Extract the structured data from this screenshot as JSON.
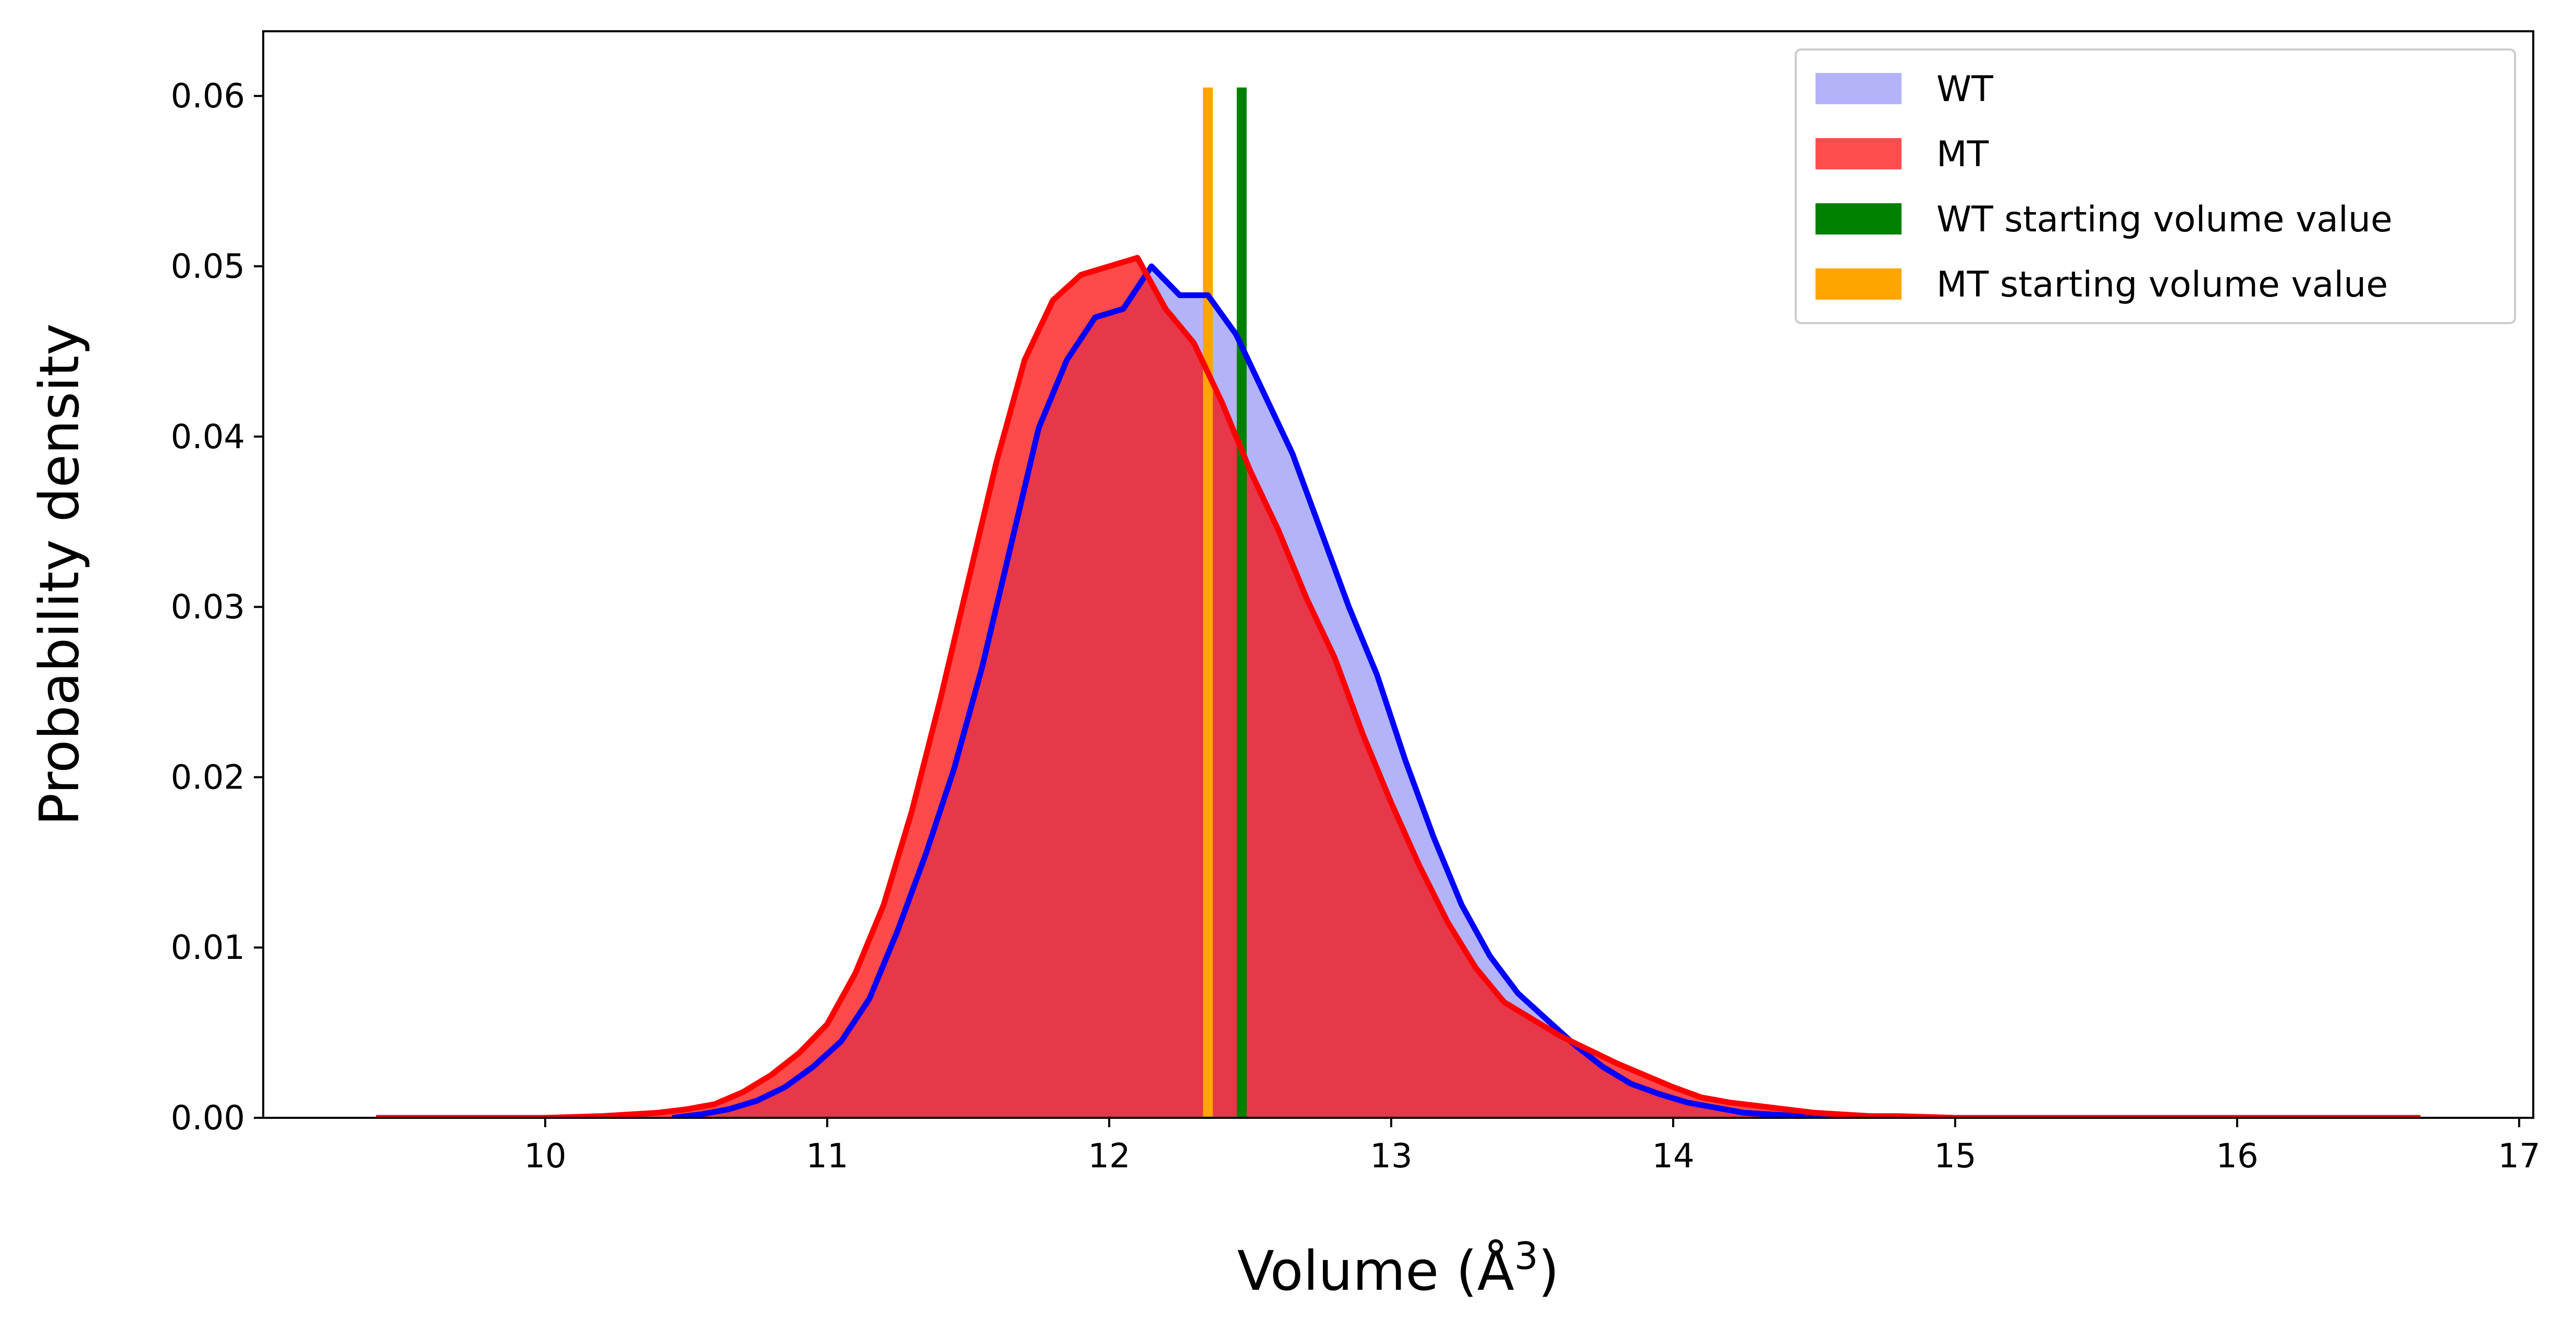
{
  "chart_data": {
    "type": "histogram",
    "xlabel": "Volume (Å",
    "xlabel_sup": "3",
    "xlabel_close": ")",
    "ylabel": "Probability density",
    "xlim": [
      9.0,
      17.05
    ],
    "ylim": [
      0.0,
      0.0638
    ],
    "xticks": [
      10,
      11,
      12,
      13,
      14,
      15,
      16,
      17
    ],
    "yticks": [
      0.0,
      0.01,
      0.02,
      0.03,
      0.04,
      0.05,
      0.06
    ],
    "ytick_labels": [
      "0.00",
      "0.01",
      "0.02",
      "0.03",
      "0.04",
      "0.05",
      "0.06"
    ],
    "grid": false,
    "legend_position": "top-right",
    "series": [
      {
        "name": "WT",
        "kind": "histogram+line",
        "fill_color": "#b3b3fa",
        "line_color": "#0000ff",
        "x": [
          10.45,
          10.55,
          10.65,
          10.75,
          10.85,
          10.95,
          11.05,
          11.15,
          11.25,
          11.35,
          11.45,
          11.55,
          11.65,
          11.75,
          11.85,
          11.95,
          12.05,
          12.15,
          12.25,
          12.35,
          12.45,
          12.55,
          12.65,
          12.75,
          12.85,
          12.95,
          13.05,
          13.15,
          13.25,
          13.35,
          13.45,
          13.55,
          13.65,
          13.75,
          13.85,
          13.95,
          14.05,
          14.15,
          14.25,
          14.35,
          14.45,
          14.55,
          14.65
        ],
        "values": [
          0.0,
          0.0002,
          0.0005,
          0.001,
          0.0018,
          0.003,
          0.0045,
          0.007,
          0.011,
          0.0155,
          0.0205,
          0.0265,
          0.0335,
          0.0405,
          0.0445,
          0.047,
          0.0475,
          0.05,
          0.0483,
          0.0483,
          0.046,
          0.0425,
          0.039,
          0.0345,
          0.03,
          0.026,
          0.021,
          0.0165,
          0.0125,
          0.0095,
          0.0073,
          0.0058,
          0.0043,
          0.003,
          0.002,
          0.0014,
          0.0009,
          0.0006,
          0.0003,
          0.0002,
          0.0001,
          0.0,
          0.0
        ]
      },
      {
        "name": "MT",
        "kind": "histogram+line",
        "fill_color": "#fe4a4a",
        "overlap_color": "#e6374b",
        "line_color": "#ff0000",
        "x": [
          9.4,
          9.6,
          9.8,
          10.0,
          10.2,
          10.3,
          10.4,
          10.5,
          10.6,
          10.7,
          10.8,
          10.9,
          11.0,
          11.1,
          11.2,
          11.3,
          11.4,
          11.5,
          11.6,
          11.7,
          11.8,
          11.9,
          12.0,
          12.1,
          12.2,
          12.3,
          12.4,
          12.5,
          12.6,
          12.7,
          12.8,
          12.9,
          13.0,
          13.1,
          13.2,
          13.3,
          13.4,
          13.5,
          13.6,
          13.7,
          13.8,
          13.9,
          14.0,
          14.1,
          14.2,
          14.3,
          14.4,
          14.5,
          14.6,
          14.7,
          14.8,
          15.0,
          15.2,
          15.5,
          16.0,
          16.3,
          16.65
        ],
        "values": [
          0.0,
          0.0,
          0.0,
          0.0,
          0.0001,
          0.0002,
          0.0003,
          0.0005,
          0.0008,
          0.0015,
          0.0025,
          0.0038,
          0.0055,
          0.0085,
          0.0125,
          0.018,
          0.0245,
          0.0315,
          0.0385,
          0.0445,
          0.048,
          0.0495,
          0.05,
          0.0505,
          0.0475,
          0.0455,
          0.042,
          0.038,
          0.0345,
          0.0305,
          0.027,
          0.0225,
          0.0185,
          0.0148,
          0.0115,
          0.0088,
          0.0068,
          0.0058,
          0.0048,
          0.004,
          0.0032,
          0.0025,
          0.0018,
          0.0012,
          0.0009,
          0.0007,
          0.0005,
          0.0003,
          0.0002,
          0.0001,
          0.0001,
          0.0,
          0.0,
          0.0,
          0.0,
          0.0,
          0.0
        ]
      }
    ],
    "vertical_lines": [
      {
        "name": "WT starting volume value",
        "x": 12.47,
        "ymax": 0.0605,
        "color": "#008000"
      },
      {
        "name": "MT starting volume value",
        "x": 12.35,
        "ymax": 0.0605,
        "color": "#ffa500"
      }
    ],
    "legend": [
      {
        "label": "WT",
        "color": "#b3b3fa"
      },
      {
        "label": "MT",
        "color": "#ff4d4d"
      },
      {
        "label": "WT starting volume value",
        "color": "#008000"
      },
      {
        "label": "MT starting volume value",
        "color": "#ffa500"
      }
    ]
  }
}
